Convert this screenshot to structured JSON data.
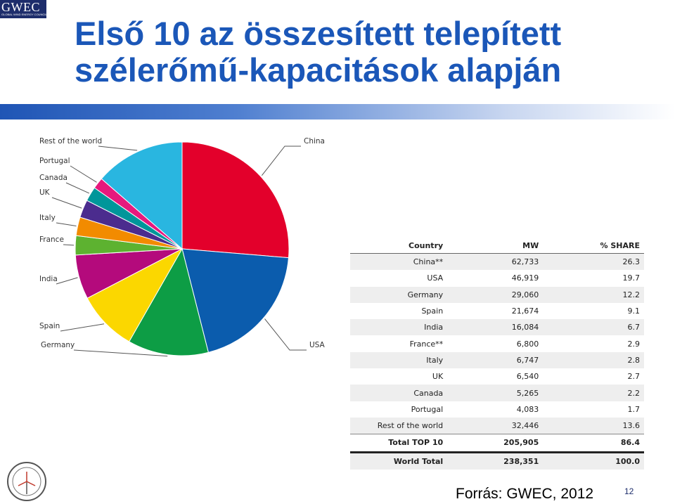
{
  "logo": {
    "brand": "GWEC",
    "subtitle": "GLOBAL WIND ENERGY COUNCIL"
  },
  "title": {
    "line1": "Első 10 az összesített telepített",
    "line2": "szélerőmű-kapacitások alapján"
  },
  "chart_data": {
    "type": "pie",
    "slices": [
      {
        "label": "China",
        "share": 26.3,
        "color": "#e3002b"
      },
      {
        "label": "USA",
        "share": 19.7,
        "color": "#0b5cad"
      },
      {
        "label": "Germany",
        "share": 12.2,
        "color": "#0d9d45"
      },
      {
        "label": "Spain",
        "share": 9.1,
        "color": "#fbd700"
      },
      {
        "label": "India",
        "share": 6.7,
        "color": "#b40a7c"
      },
      {
        "label": "France",
        "share": 2.9,
        "color": "#5db230"
      },
      {
        "label": "Italy",
        "share": 2.8,
        "color": "#f28b00"
      },
      {
        "label": "UK",
        "share": 2.7,
        "color": "#4b2c8e"
      },
      {
        "label": "Canada",
        "share": 2.2,
        "color": "#00969a"
      },
      {
        "label": "Portugal",
        "share": 1.7,
        "color": "#e6197d"
      },
      {
        "label": "Rest of the world",
        "share": 13.6,
        "color": "#29b6e0"
      }
    ],
    "table": {
      "headers": [
        "Country",
        "MW",
        "% SHARE"
      ],
      "rows": [
        [
          "China**",
          "62,733",
          "26.3"
        ],
        [
          "USA",
          "46,919",
          "19.7"
        ],
        [
          "Germany",
          "29,060",
          "12.2"
        ],
        [
          "Spain",
          "21,674",
          "9.1"
        ],
        [
          "India",
          "16,084",
          "6.7"
        ],
        [
          "France**",
          "6,800",
          "2.9"
        ],
        [
          "Italy",
          "6,747",
          "2.8"
        ],
        [
          "UK",
          "6,540",
          "2.7"
        ],
        [
          "Canada",
          "5,265",
          "2.2"
        ],
        [
          "Portugal",
          "4,083",
          "1.7"
        ],
        [
          "Rest of the world",
          "32,446",
          "13.6"
        ]
      ],
      "total_row": [
        "Total TOP 10",
        "205,905",
        "86.4"
      ],
      "world_row": [
        "World Total",
        "238,351",
        "100.0"
      ]
    }
  },
  "footer": {
    "source": "Forrás: GWEC, 2012",
    "page": "12"
  }
}
